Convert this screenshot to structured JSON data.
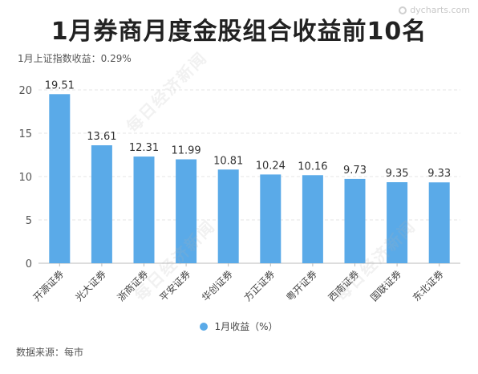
{
  "brand": {
    "logo_text": "dycharts.com"
  },
  "watermark": "每日经济新闻",
  "chart_data": {
    "type": "bar",
    "title": "1月券商月度金股组合收益前10名",
    "subtitle": "1月上证指数收益：0.29%",
    "categories": [
      "开源证券",
      "光大证券",
      "浙商证券",
      "平安证券",
      "华创证券",
      "方正证券",
      "粤开证券",
      "西南证券",
      "国联证券",
      "东北证券"
    ],
    "series": [
      {
        "name": "1月收益（%）",
        "values": [
          19.51,
          13.61,
          12.31,
          11.99,
          10.81,
          10.24,
          10.16,
          9.73,
          9.35,
          9.33
        ]
      }
    ],
    "data_labels": [
      "19.51",
      "13.61",
      "12.31",
      "11.99",
      "10.81",
      "10.24",
      "10.16",
      "9.73",
      "9.35",
      "9.33"
    ],
    "ylim": [
      0,
      20
    ],
    "yticks": [
      0,
      5,
      10,
      15,
      20
    ],
    "grid": true,
    "legend_position": "bottom",
    "bar_color": "#5aaae8"
  },
  "source": "数据来源：每市"
}
